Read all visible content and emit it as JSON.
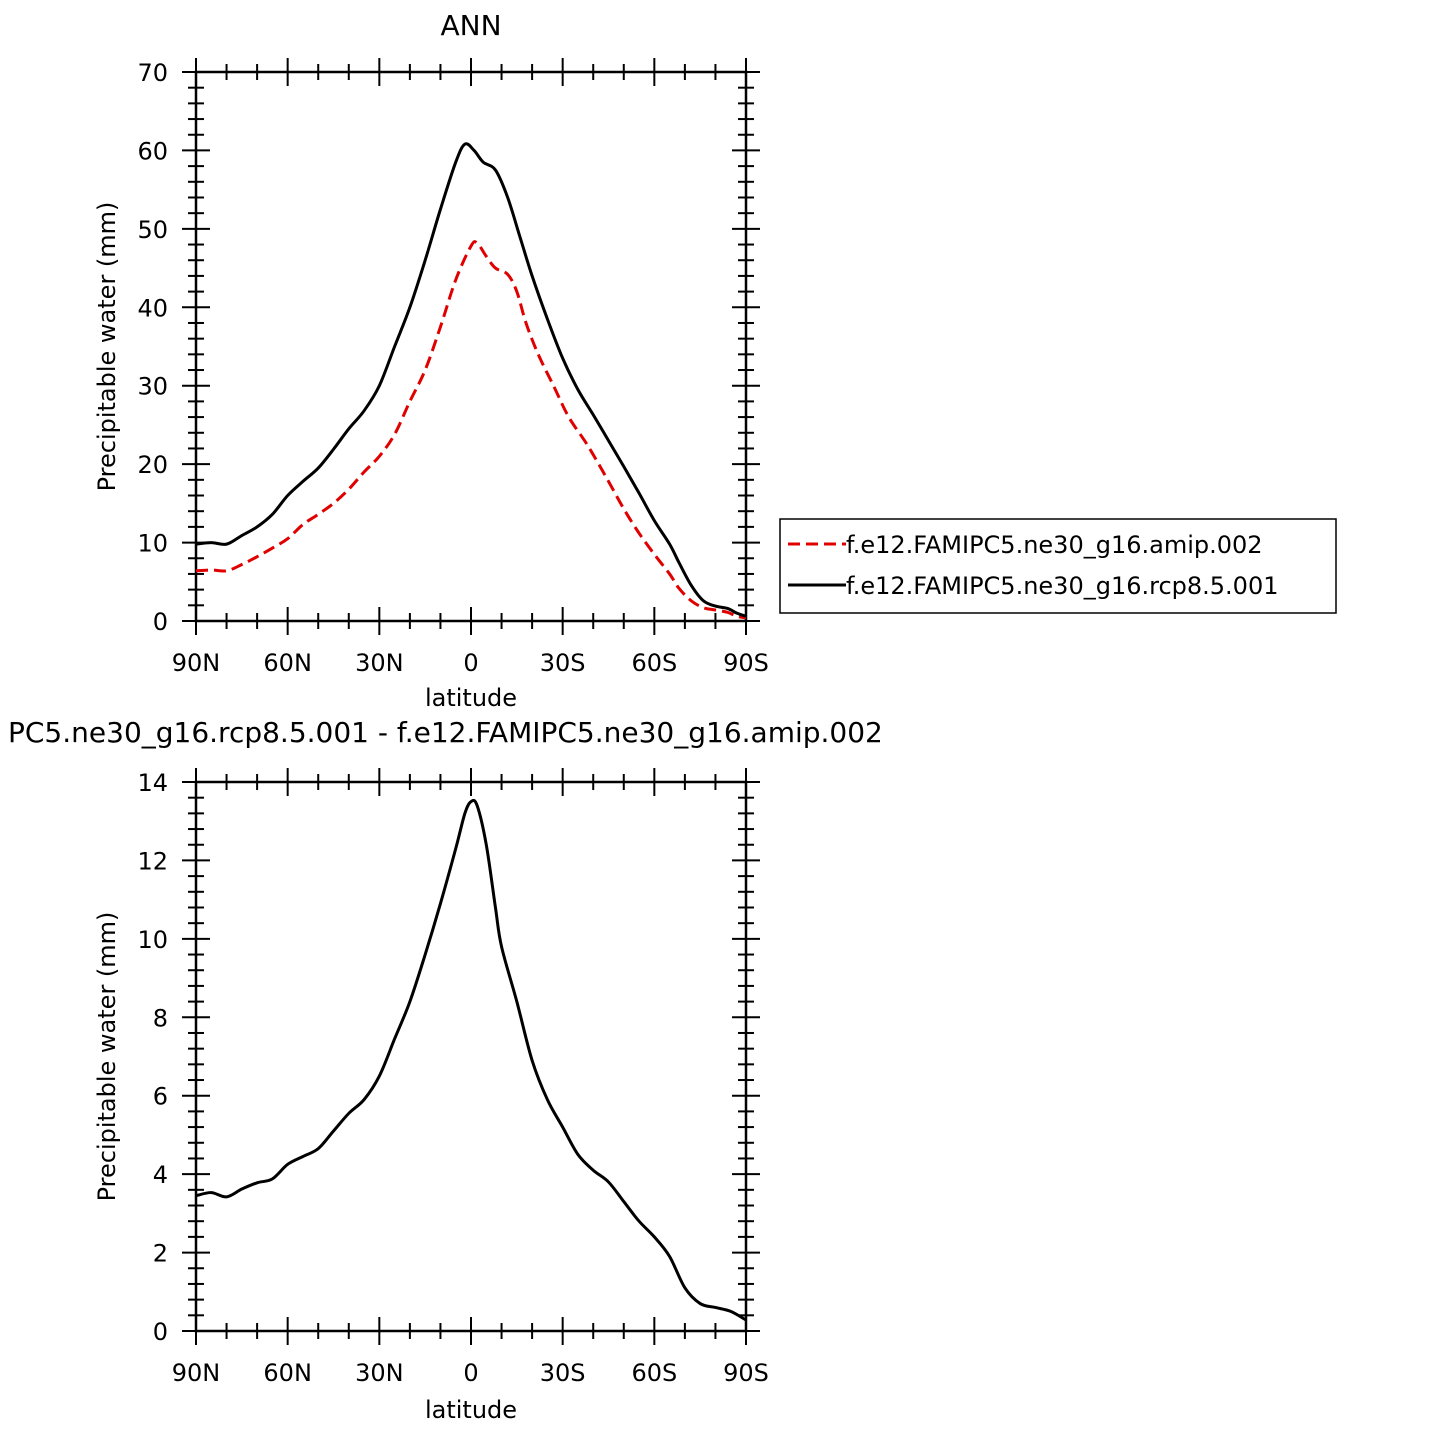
{
  "chart_data": [
    {
      "type": "line",
      "title": "ANN",
      "xlabel": "latitude",
      "ylabel": "Precipitable water (mm)",
      "xlim": [
        90,
        -90
      ],
      "ylim": [
        0,
        70
      ],
      "x_ticks": [
        90,
        60,
        30,
        0,
        -30,
        -60,
        -90
      ],
      "x_tick_labels": [
        "90N",
        "60N",
        "30N",
        "0",
        "30S",
        "60S",
        "90S"
      ],
      "y_ticks": [
        0,
        10,
        20,
        30,
        40,
        50,
        60,
        70
      ],
      "y_tick_labels": [
        "0",
        "10",
        "20",
        "30",
        "40",
        "50",
        "60",
        "70"
      ],
      "legend_position": "right",
      "series": [
        {
          "name": "f.e12.FAMIPC5.ne30_g16.amip.002",
          "color": "#e00000",
          "dash": "dashed",
          "points": [
            [
              90,
              6.4
            ],
            [
              85,
              6.5
            ],
            [
              80,
              6.4
            ],
            [
              75,
              7.2
            ],
            [
              70,
              8.2
            ],
            [
              65,
              9.3
            ],
            [
              60,
              10.5
            ],
            [
              55,
              12.3
            ],
            [
              50,
              13.6
            ],
            [
              45,
              15.0
            ],
            [
              40,
              16.8
            ],
            [
              35,
              19.0
            ],
            [
              30,
              21.0
            ],
            [
              25,
              23.8
            ],
            [
              20,
              28.0
            ],
            [
              15,
              32.0
            ],
            [
              10,
              37.5
            ],
            [
              5,
              43.5
            ],
            [
              0,
              47.8
            ],
            [
              -2,
              48.2
            ],
            [
              -5,
              46.5
            ],
            [
              -8,
              45.0
            ],
            [
              -12,
              44.2
            ],
            [
              -15,
              42.0
            ],
            [
              -18,
              38.0
            ],
            [
              -22,
              34.0
            ],
            [
              -27,
              30.0
            ],
            [
              -32,
              26.0
            ],
            [
              -38,
              22.5
            ],
            [
              -44,
              18.5
            ],
            [
              -50,
              14.3
            ],
            [
              -55,
              11.2
            ],
            [
              -60,
              8.5
            ],
            [
              -65,
              6.0
            ],
            [
              -68,
              4.2
            ],
            [
              -72,
              2.6
            ],
            [
              -76,
              1.7
            ],
            [
              -80,
              1.4
            ],
            [
              -84,
              1.1
            ],
            [
              -87,
              0.6
            ],
            [
              -90,
              0.4
            ]
          ]
        },
        {
          "name": "f.e12.FAMIPC5.ne30_g16.rcp8.5.001",
          "color": "#000000",
          "dash": "solid",
          "points": [
            [
              90,
              9.8
            ],
            [
              85,
              10.0
            ],
            [
              80,
              9.8
            ],
            [
              75,
              10.9
            ],
            [
              70,
              12.0
            ],
            [
              65,
              13.6
            ],
            [
              60,
              16.0
            ],
            [
              55,
              17.8
            ],
            [
              50,
              19.5
            ],
            [
              45,
              21.9
            ],
            [
              40,
              24.5
            ],
            [
              35,
              26.8
            ],
            [
              30,
              30.0
            ],
            [
              25,
              35.0
            ],
            [
              20,
              40.0
            ],
            [
              15,
              46.0
            ],
            [
              10,
              52.5
            ],
            [
              5,
              58.5
            ],
            [
              2,
              60.8
            ],
            [
              -1,
              60.0
            ],
            [
              -4,
              58.5
            ],
            [
              -8,
              57.5
            ],
            [
              -12,
              54.0
            ],
            [
              -16,
              49.0
            ],
            [
              -20,
              44.0
            ],
            [
              -25,
              38.5
            ],
            [
              -30,
              33.5
            ],
            [
              -35,
              29.5
            ],
            [
              -40,
              26.3
            ],
            [
              -45,
              23.0
            ],
            [
              -50,
              19.7
            ],
            [
              -55,
              16.3
            ],
            [
              -60,
              12.8
            ],
            [
              -65,
              9.8
            ],
            [
              -68,
              7.5
            ],
            [
              -72,
              4.6
            ],
            [
              -76,
              2.6
            ],
            [
              -80,
              1.9
            ],
            [
              -84,
              1.6
            ],
            [
              -87,
              1.0
            ],
            [
              -90,
              0.6
            ]
          ]
        }
      ]
    },
    {
      "type": "line",
      "title": "PC5.ne30_g16.rcp8.5.001 - f.e12.FAMIPC5.ne30_g16.amip.002",
      "xlabel": "latitude",
      "ylabel": "Precipitable water (mm)",
      "xlim": [
        90,
        -90
      ],
      "ylim": [
        0,
        14
      ],
      "x_ticks": [
        90,
        60,
        30,
        0,
        -30,
        -60,
        -90
      ],
      "x_tick_labels": [
        "90N",
        "60N",
        "30N",
        "0",
        "30S",
        "60S",
        "90S"
      ],
      "y_ticks": [
        0,
        2,
        4,
        6,
        8,
        10,
        12,
        14
      ],
      "y_tick_labels": [
        "0",
        "2",
        "4",
        "6",
        "8",
        "10",
        "12",
        "14"
      ],
      "series": [
        {
          "color": "#000000",
          "dash": "solid",
          "points": [
            [
              90,
              3.45
            ],
            [
              85,
              3.53
            ],
            [
              80,
              3.42
            ],
            [
              75,
              3.62
            ],
            [
              70,
              3.78
            ],
            [
              65,
              3.88
            ],
            [
              60,
              4.25
            ],
            [
              55,
              4.45
            ],
            [
              50,
              4.65
            ],
            [
              45,
              5.1
            ],
            [
              40,
              5.55
            ],
            [
              35,
              5.9
            ],
            [
              30,
              6.5
            ],
            [
              25,
              7.45
            ],
            [
              20,
              8.4
            ],
            [
              15,
              9.6
            ],
            [
              10,
              10.9
            ],
            [
              5,
              12.3
            ],
            [
              2,
              13.2
            ],
            [
              0,
              13.5
            ],
            [
              -2,
              13.4
            ],
            [
              -5,
              12.4
            ],
            [
              -8,
              10.8
            ],
            [
              -10,
              9.8
            ],
            [
              -15,
              8.4
            ],
            [
              -20,
              6.9
            ],
            [
              -25,
              5.9
            ],
            [
              -30,
              5.2
            ],
            [
              -35,
              4.5
            ],
            [
              -40,
              4.1
            ],
            [
              -45,
              3.8
            ],
            [
              -50,
              3.3
            ],
            [
              -55,
              2.8
            ],
            [
              -60,
              2.4
            ],
            [
              -65,
              1.9
            ],
            [
              -70,
              1.1
            ],
            [
              -75,
              0.7
            ],
            [
              -80,
              0.6
            ],
            [
              -85,
              0.5
            ],
            [
              -90,
              0.28
            ]
          ]
        }
      ]
    }
  ]
}
